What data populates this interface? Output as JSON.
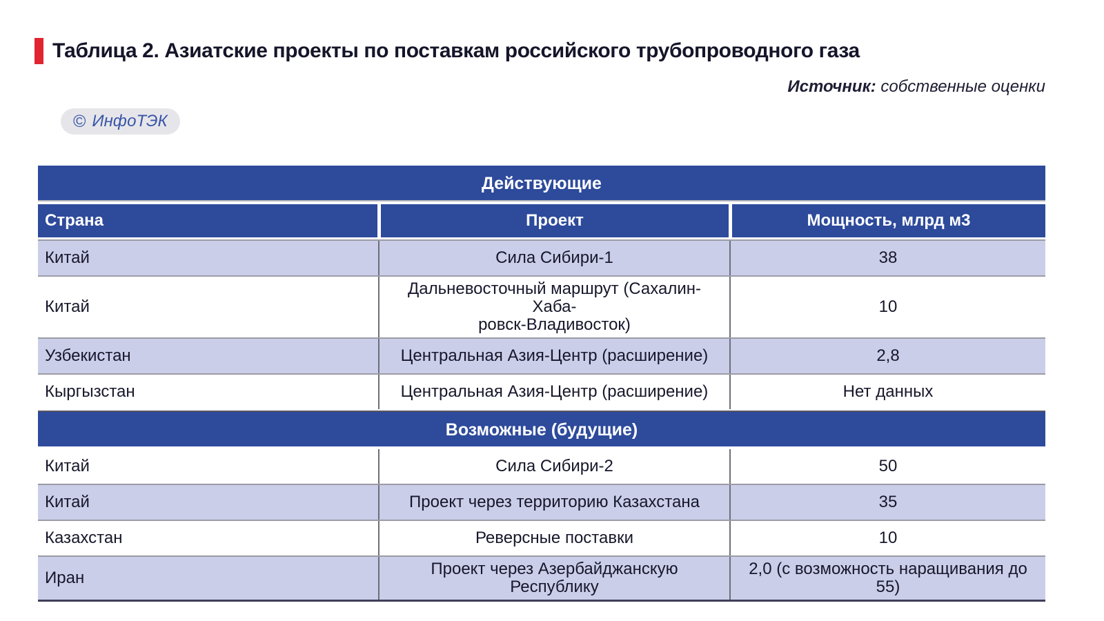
{
  "header": {
    "title": "Таблица 2. Азиатские проекты по поставкам российского трубопроводного газа",
    "source_label": "Источник:",
    "source_text": "собственные оценки",
    "badge_copyright": "©",
    "badge_name": "ИнфоТЭК"
  },
  "colors": {
    "accent_red": "#e02531",
    "header_blue": "#2d4a9b",
    "row_lavender": "#cbcee9",
    "badge_blue": "#3a55a8",
    "badge_bg": "#e6e6ea"
  },
  "table": {
    "section1_header": "Действующие",
    "section2_header": "Возможные (будущие)",
    "columns": [
      "Страна",
      "Проект",
      "Мощность, млрд м3"
    ],
    "rows1": [
      [
        "Китай",
        "Сила Сибири-1",
        "38"
      ],
      [
        "Китай",
        "Дальневосточный маршрут (Сахалин-Хаба-\nровск-Владивосток)",
        "10"
      ],
      [
        "Узбекистан",
        "Центральная Азия-Центр (расширение)",
        "2,8"
      ],
      [
        "Кыргызстан",
        "Центральная Азия-Центр (расширение)",
        "Нет данных"
      ]
    ],
    "rows2": [
      [
        "Китай",
        "Сила Сибири-2",
        "50"
      ],
      [
        "Китай",
        "Проект через территорию Казахстана",
        "35"
      ],
      [
        "Казахстан",
        "Реверсные поставки",
        "10"
      ],
      [
        "Иран",
        "Проект через Азербайджанскую Республику",
        "2,0 (с возможность наращивания до 55)"
      ]
    ]
  },
  "chart_data": {
    "type": "table",
    "title": "Таблица 2. Азиатские проекты по поставкам российского трубопроводного газа",
    "columns": [
      "Страна",
      "Проект",
      "Мощность, млрд м3"
    ],
    "sections": [
      {
        "name": "Действующие",
        "rows": [
          [
            "Китай",
            "Сила Сибири-1",
            "38"
          ],
          [
            "Китай",
            "Дальневосточный маршрут (Сахалин-Хабаровск-Владивосток)",
            "10"
          ],
          [
            "Узбекистан",
            "Центральная Азия-Центр (расширение)",
            "2,8"
          ],
          [
            "Кыргызстан",
            "Центральная Азия-Центр (расширение)",
            "Нет данных"
          ]
        ]
      },
      {
        "name": "Возможные (будущие)",
        "rows": [
          [
            "Китай",
            "Сила Сибири-2",
            "50"
          ],
          [
            "Китай",
            "Проект через территорию Казахстана",
            "35"
          ],
          [
            "Казахстан",
            "Реверсные поставки",
            "10"
          ],
          [
            "Иран",
            "Проект через Азербайджанскую Республику",
            "2,0 (с возможность наращивания до 55)"
          ]
        ]
      }
    ]
  }
}
